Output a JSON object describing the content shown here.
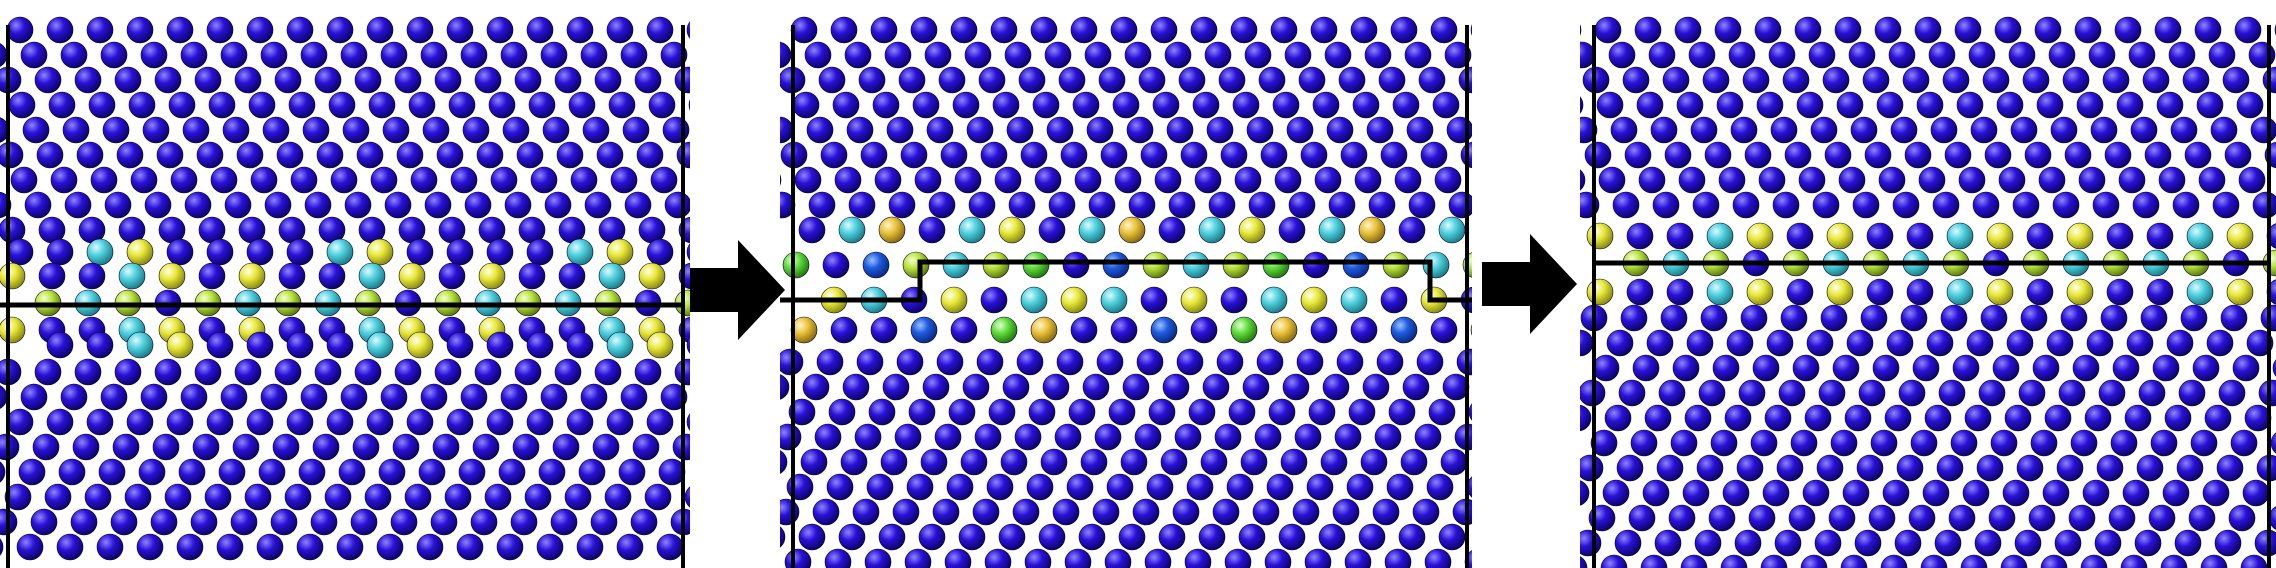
{
  "figure": {
    "panels": [
      {
        "id": "initial",
        "boundary": "flat"
      },
      {
        "id": "intermediate",
        "boundary": "stepped"
      },
      {
        "id": "final",
        "boundary": "flat"
      }
    ],
    "arrows": [
      {
        "direction": "right"
      },
      {
        "direction": "right"
      }
    ],
    "colors": {
      "bulk_atom": "#2a10d8",
      "bulk_atom_highlight": "#8f86ff",
      "boundary_cyan": "#4fd0de",
      "boundary_yellow": "#e8e83a",
      "boundary_yellowgreen": "#b8e23c",
      "boundary_green": "#5fdc3c",
      "boundary_gold": "#e8c23a",
      "boundary_mid_blue": "#1e5ae0",
      "frame_line": "#000000",
      "arrow": "#000000"
    }
  }
}
